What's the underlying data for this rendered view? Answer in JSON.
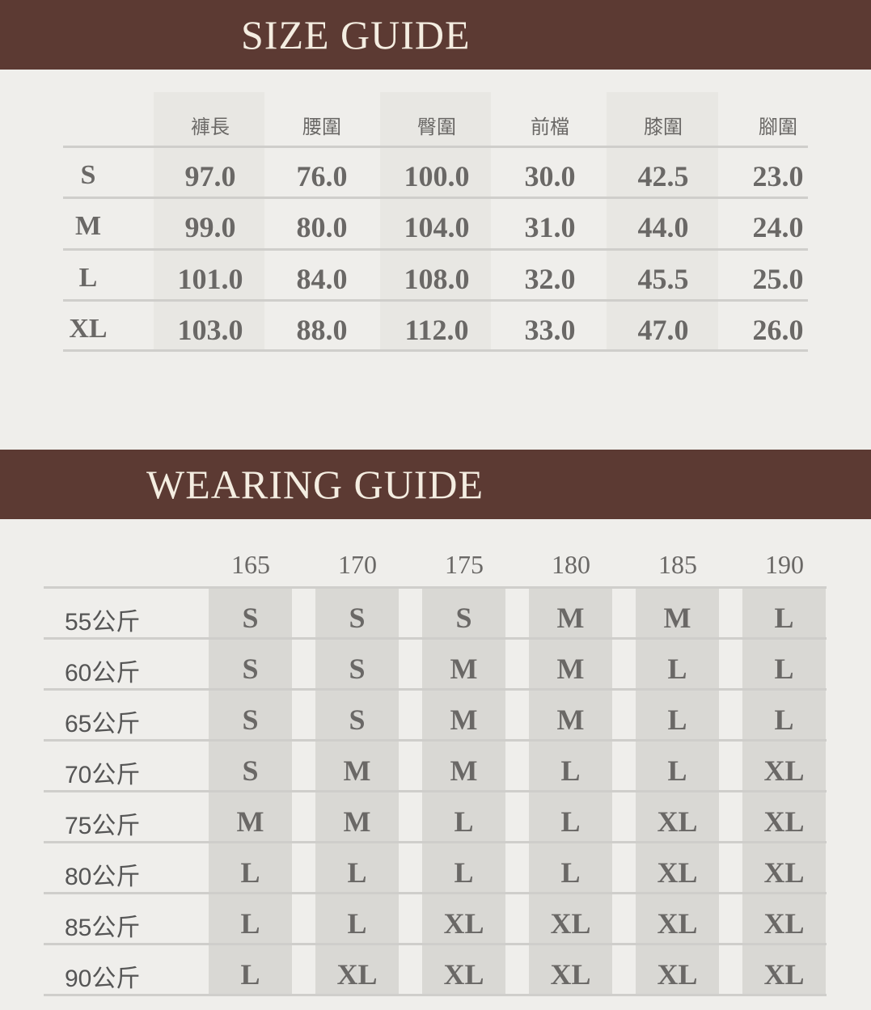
{
  "size_guide": {
    "title": "SIZE GUIDE",
    "headers": [
      "褲長",
      "腰圍",
      "臀圍",
      "前檔",
      "膝圍",
      "腳圍"
    ],
    "rows": [
      {
        "size": "S",
        "values": [
          "97.0",
          "76.0",
          "100.0",
          "30.0",
          "42.5",
          "23.0"
        ]
      },
      {
        "size": "M",
        "values": [
          "99.0",
          "80.0",
          "104.0",
          "31.0",
          "44.0",
          "24.0"
        ]
      },
      {
        "size": "L",
        "values": [
          "101.0",
          "84.0",
          "108.0",
          "32.0",
          "45.5",
          "25.0"
        ]
      },
      {
        "size": "XL",
        "values": [
          "103.0",
          "88.0",
          "112.0",
          "33.0",
          "47.0",
          "26.0"
        ]
      }
    ]
  },
  "wearing_guide": {
    "title": "WEARING GUIDE",
    "heights": [
      "165",
      "170",
      "175",
      "180",
      "185",
      "190"
    ],
    "rows": [
      {
        "weight": "55公斤",
        "sizes": [
          "S",
          "S",
          "S",
          "M",
          "M",
          "L"
        ]
      },
      {
        "weight": "60公斤",
        "sizes": [
          "S",
          "S",
          "M",
          "M",
          "L",
          "L"
        ]
      },
      {
        "weight": "65公斤",
        "sizes": [
          "S",
          "S",
          "M",
          "M",
          "L",
          "L"
        ]
      },
      {
        "weight": "70公斤",
        "sizes": [
          "S",
          "M",
          "M",
          "L",
          "L",
          "XL"
        ]
      },
      {
        "weight": "75公斤",
        "sizes": [
          "M",
          "M",
          "L",
          "L",
          "XL",
          "XL"
        ]
      },
      {
        "weight": "80公斤",
        "sizes": [
          "L",
          "L",
          "L",
          "L",
          "XL",
          "XL"
        ]
      },
      {
        "weight": "85公斤",
        "sizes": [
          "L",
          "L",
          "XL",
          "XL",
          "XL",
          "XL"
        ]
      },
      {
        "weight": "90公斤",
        "sizes": [
          "L",
          "XL",
          "XL",
          "XL",
          "XL",
          "XL"
        ]
      }
    ]
  },
  "colors": {
    "header_bar": "#5c3a33",
    "title_text": "#f4ede1",
    "background": "#efeeeb"
  }
}
